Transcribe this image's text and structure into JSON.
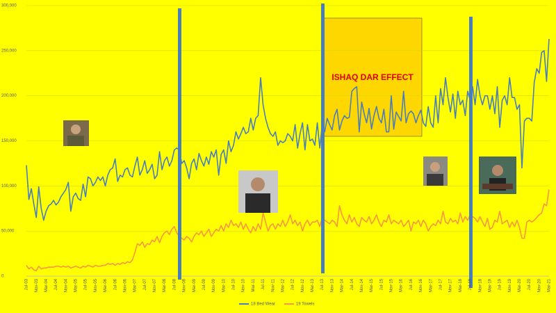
{
  "chart_data": {
    "type": "line",
    "categories": [
      "Jul-03",
      null,
      null,
      null,
      "Nov-03",
      null,
      null,
      null,
      "Mar-04",
      null,
      null,
      null,
      "Jul-04",
      null,
      null,
      null,
      "Nov-04",
      null,
      null,
      null,
      "Mar-05",
      null,
      null,
      null,
      "Jul-05",
      null,
      null,
      null,
      "Nov-05",
      null,
      null,
      null,
      "Mar-06",
      null,
      null,
      null,
      "Jul-06",
      null,
      null,
      null,
      "Nov-06",
      null,
      null,
      null,
      "Mar-07",
      null,
      null,
      null,
      "Jul-07",
      null,
      null,
      null,
      "Nov-07",
      null,
      null,
      null,
      "Mar-08",
      null,
      null,
      null,
      "Jul-08",
      null,
      null,
      null,
      "Nov-08",
      null,
      null,
      null,
      "Mar-09",
      null,
      null,
      null,
      "Jul-09",
      null,
      null,
      null,
      "Nov-09",
      null,
      null,
      null,
      "Mar-10",
      null,
      null,
      null,
      "Jul-10",
      null,
      null,
      null,
      "Nov-10",
      null,
      null,
      null,
      "Mar-11",
      null,
      null,
      null,
      "Jul-11",
      null,
      null,
      null,
      "Nov-11",
      null,
      null,
      null,
      "Mar-12",
      null,
      null,
      null,
      "Jul-12",
      null,
      null,
      null,
      "Nov-12",
      null,
      null,
      null,
      "Mar-13",
      null,
      null,
      null,
      "Jul-13",
      null,
      null,
      null,
      "Nov-13",
      null,
      null,
      null,
      "Mar-14",
      null,
      null,
      null,
      "Jul-14",
      null,
      null,
      null,
      "Nov-14",
      null,
      null,
      null,
      "Mar-15",
      null,
      null,
      null,
      "Jul-15",
      null,
      null,
      null,
      "Nov-15",
      null,
      null,
      null,
      "Mar-16",
      null,
      null,
      null,
      "Jul-16",
      null,
      null,
      null,
      "Nov-16",
      null,
      null,
      null,
      "Mar-17",
      null,
      null,
      null,
      "Jul-17",
      null,
      null,
      null,
      "Nov-17",
      null,
      null,
      null,
      "Mar-18",
      null,
      null,
      null,
      "Jul-18",
      null,
      null,
      null,
      "Nov-18",
      null,
      null,
      null,
      "Mar-19",
      null,
      null,
      null,
      "Jul-19",
      null,
      null,
      null,
      "Nov-19",
      null,
      null,
      null,
      "Mar-20",
      null,
      null,
      null,
      "Jul-20",
      null,
      null,
      null,
      "Nov-20",
      null,
      null,
      null,
      "Mar-21"
    ],
    "series": [
      {
        "name": "18 Bed Wear",
        "color": "#4a7ebb",
        "values": [
          123000,
          85000,
          97000,
          80000,
          65000,
          99000,
          75000,
          62000,
          72000,
          78000,
          80000,
          84000,
          79000,
          82000,
          88000,
          92000,
          96000,
          104000,
          72000,
          88000,
          92000,
          86000,
          84000,
          102000,
          88000,
          110000,
          108000,
          100000,
          104000,
          110000,
          106000,
          110000,
          100000,
          112000,
          118000,
          120000,
          130000,
          105000,
          112000,
          110000,
          118000,
          120000,
          112000,
          110000,
          122000,
          132000,
          112000,
          118000,
          128000,
          114000,
          118000,
          124000,
          108000,
          112000,
          138000,
          118000,
          128000,
          132000,
          122000,
          128000,
          140000,
          142000,
          140000,
          125000,
          128000,
          120000,
          108000,
          125000,
          130000,
          118000,
          136000,
          128000,
          122000,
          132000,
          124000,
          138000,
          132000,
          140000,
          112000,
          135000,
          140000,
          125000,
          150000,
          138000,
          145000,
          160000,
          152000,
          158000,
          165000,
          158000,
          160000,
          175000,
          162000,
          175000,
          178000,
          220000,
          190000,
          175000,
          165000,
          158000,
          155000,
          160000,
          145000,
          150000,
          148000,
          150000,
          158000,
          155000,
          150000,
          168000,
          142000,
          158000,
          170000,
          140000,
          168000,
          150000,
          152000,
          145000,
          170000,
          142000,
          168000,
          160000,
          175000,
          168000,
          162000,
          178000,
          185000,
          162000,
          172000,
          178000,
          175000,
          176000,
          205000,
          208000,
          210000,
          160000,
          193000,
          180000,
          170000,
          186000,
          163000,
          178000,
          188000,
          175000,
          170000,
          185000,
          160000,
          160000,
          200000,
          163000,
          182000,
          177000,
          172000,
          205000,
          170000,
          180000,
          183000,
          180000,
          170000,
          178000,
          184000,
          170000,
          166000,
          188000,
          170000,
          165000,
          200000,
          170000,
          208000,
          190000,
          220000,
          198000,
          182000,
          202000,
          175000,
          205000,
          190000,
          195000,
          178000,
          205000,
          195000,
          210000,
          190000,
          218000,
          200000,
          190000,
          200000,
          200000,
          185000,
          200000,
          180000,
          210000,
          165000,
          195000,
          200000,
          190000,
          220000,
          198000,
          198000,
          185000,
          190000,
          120000,
          172000,
          175000,
          175000,
          172000,
          215000,
          230000,
          225000,
          248000,
          250000,
          216000,
          263000
        ]
      },
      {
        "name": "19 Towels",
        "color": "#f79646",
        "values": [
          12000,
          8000,
          10000,
          7000,
          6000,
          11000,
          8000,
          9000,
          9000,
          10000,
          10000,
          10000,
          11000,
          11000,
          10000,
          11000,
          10000,
          11000,
          9000,
          10000,
          11000,
          10000,
          9000,
          11000,
          10000,
          12000,
          11000,
          10000,
          12000,
          11000,
          11000,
          12000,
          12000,
          14000,
          13000,
          14000,
          12000,
          14000,
          13000,
          15000,
          14000,
          16000,
          15000,
          18000,
          26000,
          36000,
          34000,
          38000,
          32000,
          36000,
          35000,
          40000,
          38000,
          44000,
          37000,
          44000,
          48000,
          50000,
          46000,
          52000,
          55000,
          48000,
          44000,
          42000,
          40000,
          44000,
          42000,
          38000,
          44000,
          48000,
          46000,
          50000,
          44000,
          48000,
          52000,
          44000,
          48000,
          52000,
          50000,
          56000,
          50000,
          58000,
          54000,
          62000,
          56000,
          58000,
          54000,
          60000,
          52000,
          58000,
          52000,
          48000,
          55000,
          50000,
          58000,
          52000,
          70000,
          60000,
          50000,
          56000,
          58000,
          52000,
          58000,
          55000,
          62000,
          55000,
          60000,
          68000,
          58000,
          62000,
          56000,
          60000,
          50000,
          58000,
          62000,
          56000,
          60000,
          60000,
          62000,
          55000,
          65000,
          62000,
          60000,
          58000,
          62000,
          60000,
          55000,
          78000,
          68000,
          62000,
          58000,
          68000,
          60000,
          65000,
          58000,
          55000,
          65000,
          62000,
          60000,
          66000,
          58000,
          62000,
          68000,
          60000,
          55000,
          62000,
          60000,
          68000,
          58000,
          62000,
          60000,
          58000,
          62000,
          55000,
          58000,
          62000,
          50000,
          60000,
          58000,
          62000,
          55000,
          62000,
          58000,
          50000,
          55000,
          58000,
          56000,
          62000,
          58000,
          72000,
          60000,
          58000,
          64000,
          60000,
          62000,
          58000,
          70000,
          60000,
          66000,
          62000,
          68000,
          66000,
          64000,
          60000,
          66000,
          60000,
          55000,
          64000,
          52000,
          54000,
          62000,
          60000,
          72000,
          58000,
          60000,
          62000,
          54000,
          60000,
          55000,
          62000,
          54000,
          42000,
          42000,
          60000,
          62000,
          60000,
          62000,
          65000,
          68000,
          70000,
          80000,
          78000,
          96000
        ]
      }
    ],
    "ylim": [
      0,
      300000
    ],
    "yticks": [
      0,
      {
        "value": 50000,
        "label": "50,000"
      },
      {
        "value": 100000,
        "label": "100,000"
      },
      {
        "value": 150000,
        "label": "150,000"
      },
      {
        "value": 200000,
        "label": "200,000"
      },
      {
        "value": 250000,
        "label": "250,000"
      },
      {
        "value": 300000,
        "label": "300,000"
      }
    ],
    "grid": true,
    "annotation": "ISHAQ DAR EFFECT"
  }
}
